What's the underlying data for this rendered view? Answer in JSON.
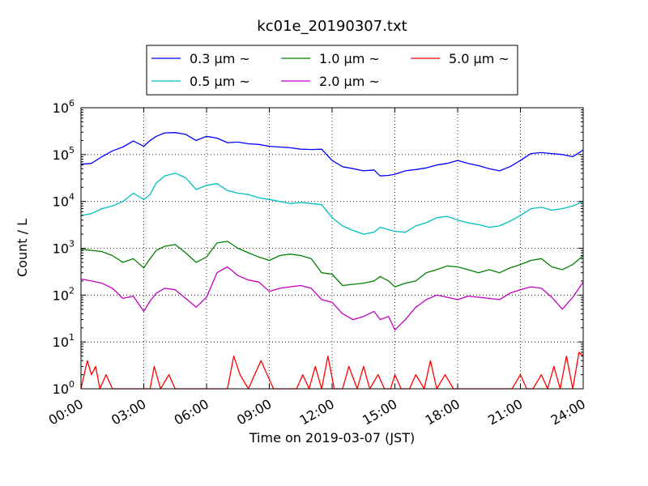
{
  "chart_data": {
    "type": "line",
    "title": "kc01e_20190307.txt",
    "xlabel": "Time on 2019-03-07 (JST)",
    "ylabel": "Count / L",
    "y_scale": "log",
    "ylim": [
      1,
      1000000
    ],
    "x_ticks": [
      "00:00",
      "03:00",
      "06:00",
      "09:00",
      "12:00",
      "15:00",
      "18:00",
      "21:00",
      "24:00"
    ],
    "y_ticks": [
      {
        "base": "10",
        "exp": "0"
      },
      {
        "base": "10",
        "exp": "1"
      },
      {
        "base": "10",
        "exp": "2"
      },
      {
        "base": "10",
        "exp": "3"
      },
      {
        "base": "10",
        "exp": "4"
      },
      {
        "base": "10",
        "exp": "5"
      },
      {
        "base": "10",
        "exp": "6"
      }
    ],
    "grid": true,
    "legend_location": "top-center",
    "x_unit": "hours since 00:00 JST",
    "series": [
      {
        "name": "0.3 μm ~",
        "color": "#0000ff",
        "x": [
          0,
          0.5,
          1,
          1.5,
          2,
          2.5,
          3,
          3.3,
          3.6,
          4,
          4.5,
          5,
          5.5,
          6,
          6.5,
          7,
          7.5,
          8,
          8.5,
          9,
          9.5,
          10,
          10.5,
          11,
          11.5,
          12,
          12.5,
          13,
          13.5,
          14,
          14.3,
          14.7,
          15,
          15.5,
          16,
          16.5,
          17,
          17.5,
          18,
          18.5,
          19,
          19.5,
          20,
          20.5,
          21,
          21.5,
          22,
          22.5,
          23,
          23.5,
          24
        ],
        "y": [
          62000,
          65000,
          90000,
          120000,
          145000,
          195000,
          150000,
          200000,
          245000,
          290000,
          295000,
          270000,
          200000,
          245000,
          225000,
          180000,
          185000,
          170000,
          165000,
          150000,
          145000,
          140000,
          130000,
          128000,
          130000,
          75000,
          55000,
          50000,
          45000,
          47000,
          35000,
          36000,
          38000,
          45000,
          48000,
          52000,
          60000,
          65000,
          75000,
          65000,
          58000,
          50000,
          45000,
          55000,
          75000,
          105000,
          110000,
          105000,
          100000,
          90000,
          125000
        ]
      },
      {
        "name": "0.5 μm ~",
        "color": "#00bfbf",
        "x": [
          0,
          0.5,
          1,
          1.5,
          2,
          2.5,
          3,
          3.3,
          3.6,
          4,
          4.5,
          5,
          5.5,
          6,
          6.5,
          7,
          7.5,
          8,
          8.5,
          9,
          9.5,
          10,
          10.5,
          11,
          11.5,
          12,
          12.5,
          13,
          13.5,
          14,
          14.3,
          14.7,
          15,
          15.5,
          16,
          16.5,
          17,
          17.5,
          18,
          18.5,
          19,
          19.5,
          20,
          20.5,
          21,
          21.5,
          22,
          22.5,
          23,
          23.5,
          24
        ],
        "y": [
          5000,
          5500,
          7000,
          8000,
          10000,
          15000,
          11000,
          14000,
          25000,
          35000,
          40000,
          32000,
          18000,
          22000,
          24000,
          17000,
          15000,
          14000,
          12000,
          11000,
          10000,
          9000,
          9500,
          9000,
          8500,
          4500,
          3000,
          2400,
          2000,
          2200,
          2800,
          2500,
          2300,
          2200,
          3000,
          3500,
          4500,
          4800,
          4000,
          3500,
          3200,
          2800,
          3000,
          3800,
          5000,
          7000,
          7500,
          6500,
          7000,
          8000,
          10000
        ]
      },
      {
        "name": "1.0 μm ~",
        "color": "#008000",
        "x": [
          0,
          0.5,
          1,
          1.5,
          2,
          2.5,
          3,
          3.3,
          3.6,
          4,
          4.5,
          5,
          5.5,
          6,
          6.5,
          7,
          7.5,
          8,
          8.5,
          9,
          9.5,
          10,
          10.5,
          11,
          11.5,
          12,
          12.5,
          13,
          13.5,
          14,
          14.3,
          14.7,
          15,
          15.5,
          16,
          16.5,
          17,
          17.5,
          18,
          18.5,
          19,
          19.5,
          20,
          20.5,
          21,
          21.5,
          22,
          22.5,
          23,
          23.5,
          24
        ],
        "y": [
          950,
          900,
          850,
          700,
          500,
          600,
          380,
          600,
          900,
          1100,
          1200,
          800,
          500,
          650,
          1300,
          1400,
          1000,
          800,
          650,
          550,
          700,
          750,
          700,
          600,
          300,
          280,
          160,
          170,
          180,
          200,
          250,
          200,
          150,
          180,
          200,
          300,
          350,
          420,
          400,
          350,
          300,
          350,
          300,
          380,
          450,
          550,
          600,
          400,
          350,
          450,
          700
        ]
      },
      {
        "name": "2.0 μm ~",
        "color": "#bf00bf",
        "x": [
          0,
          0.5,
          1,
          1.5,
          2,
          2.5,
          3,
          3.3,
          3.6,
          4,
          4.5,
          5,
          5.5,
          6,
          6.5,
          7,
          7.5,
          8,
          8.5,
          9,
          9.5,
          10,
          10.5,
          11,
          11.5,
          12,
          12.5,
          13,
          13.5,
          14,
          14.3,
          14.7,
          15,
          15.5,
          16,
          16.5,
          17,
          17.5,
          18,
          18.5,
          19,
          19.5,
          20,
          20.5,
          21,
          21.5,
          22,
          22.5,
          23,
          23.5,
          24
        ],
        "y": [
          220,
          200,
          180,
          140,
          85,
          95,
          45,
          75,
          110,
          140,
          130,
          85,
          55,
          90,
          300,
          400,
          260,
          210,
          190,
          120,
          140,
          150,
          160,
          140,
          80,
          70,
          40,
          30,
          35,
          45,
          30,
          35,
          18,
          30,
          55,
          80,
          100,
          90,
          80,
          95,
          90,
          85,
          80,
          110,
          130,
          150,
          140,
          90,
          50,
          90,
          190
        ]
      },
      {
        "name": "5.0 μm ~",
        "color": "#ff0000",
        "x": [
          0,
          0.3,
          0.5,
          0.7,
          0.9,
          1.2,
          1.5,
          2,
          2.3,
          2.7,
          3,
          3.3,
          3.5,
          3.8,
          4.2,
          4.5,
          5,
          5.5,
          6,
          6.3,
          6.7,
          7,
          7.3,
          7.6,
          8,
          8.3,
          8.6,
          8.9,
          9.2,
          9.6,
          10,
          10.3,
          10.6,
          10.9,
          11.2,
          11.5,
          11.8,
          12.1,
          12.5,
          12.8,
          13.2,
          13.5,
          13.8,
          14.2,
          14.5,
          14.8,
          15,
          15.3,
          15.7,
          16,
          16.4,
          16.7,
          17,
          17.4,
          17.8,
          18.2,
          18.6,
          19,
          19.4,
          19.8,
          20.2,
          20.6,
          21,
          21.3,
          21.6,
          22,
          22.3,
          22.6,
          22.9,
          23.2,
          23.5,
          23.8,
          24
        ],
        "y": [
          1,
          4,
          2,
          3,
          1,
          2,
          1,
          1,
          1,
          1,
          1,
          1,
          3,
          1,
          2,
          1,
          1,
          1,
          1,
          1,
          1,
          1,
          5,
          2,
          1,
          2,
          4,
          2,
          1,
          1,
          1,
          1,
          2,
          1,
          3,
          1,
          5,
          1,
          1,
          3,
          1,
          3,
          1,
          2,
          1,
          1,
          2,
          1,
          1,
          2,
          1,
          4,
          1,
          2,
          1,
          1,
          1,
          1,
          1,
          1,
          1,
          1,
          2,
          1,
          1,
          2,
          1,
          3,
          1,
          5,
          1,
          6,
          5
        ]
      }
    ]
  }
}
